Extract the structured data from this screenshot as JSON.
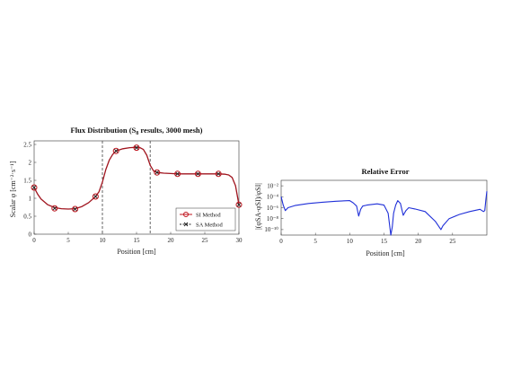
{
  "chart_data": [
    {
      "type": "line",
      "title": "Flux Distribution (S",
      "title_sub": "8",
      "title_suffix": " results, 3000 mesh)",
      "xlabel": "Position [cm]",
      "ylabel": "Scalar φ [cm⁻²·s⁻¹]",
      "xlim": [
        0,
        30
      ],
      "ylim": [
        0,
        2.6
      ],
      "xticks": [
        "0",
        "5",
        "10",
        "15",
        "20",
        "25",
        "30"
      ],
      "yticks": [
        "0",
        "0.5",
        "1",
        "1.5",
        "2",
        "2.5"
      ],
      "region_boundaries": [
        10,
        17
      ],
      "curve_color": "#a0141e",
      "legend": {
        "placement": "bottom-right",
        "entries": [
          "SI Method",
          "SA Method"
        ]
      },
      "series": [
        {
          "name": "SI Method",
          "marker": "circle",
          "color": "#c0141e",
          "x": [
            0,
            3,
            6,
            9,
            12,
            15,
            18,
            21,
            24,
            27,
            30
          ],
          "y": [
            1.3,
            0.72,
            0.7,
            1.05,
            2.32,
            2.41,
            1.72,
            1.68,
            1.68,
            1.68,
            0.82
          ]
        },
        {
          "name": "SA Method",
          "marker": "x",
          "color": "#222222",
          "x": [
            0,
            3,
            6,
            9,
            12,
            15,
            18,
            21,
            24,
            27,
            30
          ],
          "y": [
            1.3,
            0.72,
            0.7,
            1.05,
            2.32,
            2.41,
            1.72,
            1.68,
            1.68,
            1.68,
            0.82
          ]
        }
      ],
      "curve": {
        "x": [
          0,
          0.5,
          1,
          2,
          3,
          4,
          5,
          6,
          7,
          8,
          9,
          9.5,
          10,
          10.5,
          11,
          11.5,
          12,
          13,
          14,
          15,
          15.5,
          16,
          16.5,
          17,
          17.5,
          18,
          19,
          20,
          21,
          22,
          23,
          24,
          25,
          26,
          27,
          28,
          28.5,
          29,
          29.5,
          30
        ],
        "y": [
          1.3,
          1.12,
          0.98,
          0.82,
          0.74,
          0.71,
          0.7,
          0.71,
          0.77,
          0.88,
          1.05,
          1.18,
          1.45,
          1.8,
          2.06,
          2.22,
          2.32,
          2.38,
          2.41,
          2.42,
          2.41,
          2.36,
          2.2,
          1.92,
          1.76,
          1.72,
          1.7,
          1.69,
          1.68,
          1.68,
          1.68,
          1.68,
          1.68,
          1.68,
          1.68,
          1.67,
          1.65,
          1.58,
          1.35,
          0.82
        ]
      }
    },
    {
      "type": "line",
      "title": "Relative Error",
      "xlabel": "Position [cm]",
      "ylabel": "|(φSA-φSI)/φSI|",
      "yscale": "log",
      "xlim": [
        0,
        30
      ],
      "ylim": [
        1e-11,
        0.1
      ],
      "xticks": [
        "0",
        "5",
        "10",
        "15",
        "20",
        "25"
      ],
      "yticks": [
        "10⁻²",
        "10⁻⁴",
        "10⁻⁶",
        "10⁻⁸",
        "10⁻¹⁰"
      ],
      "line_color": "#1f2fd8",
      "series": [
        {
          "name": "",
          "x": [
            0,
            0.3,
            0.6,
            1,
            2,
            4,
            6,
            8,
            10,
            10.5,
            11,
            11.3,
            11.6,
            11.9,
            12.5,
            14,
            15,
            15.6,
            16,
            16.2,
            16.4,
            16.7,
            17,
            17.4,
            17.8,
            18.2,
            18.6,
            19.5,
            21,
            22.5,
            23.3,
            23.6,
            24.5,
            26,
            27.5,
            29,
            29.5,
            29.7,
            29.85,
            30
          ],
          "y": [
            0.0001,
            3e-06,
            3e-07,
            1e-06,
            2.5e-06,
            6e-06,
            1e-05,
            1.5e-05,
            2e-05,
            8e-06,
            2e-06,
            3e-08,
            5e-07,
            2e-06,
            3e-06,
            5e-06,
            3e-06,
            1e-07,
            1e-11,
            3e-10,
            1e-07,
            3e-06,
            2e-05,
            6e-06,
            4e-08,
            3e-07,
            1e-06,
            6e-07,
            2e-07,
            3e-09,
            1e-10,
            5e-10,
            1e-08,
            6e-08,
            2e-07,
            5e-07,
            2e-07,
            3e-07,
            3e-05,
            0.001
          ]
        }
      ]
    }
  ]
}
